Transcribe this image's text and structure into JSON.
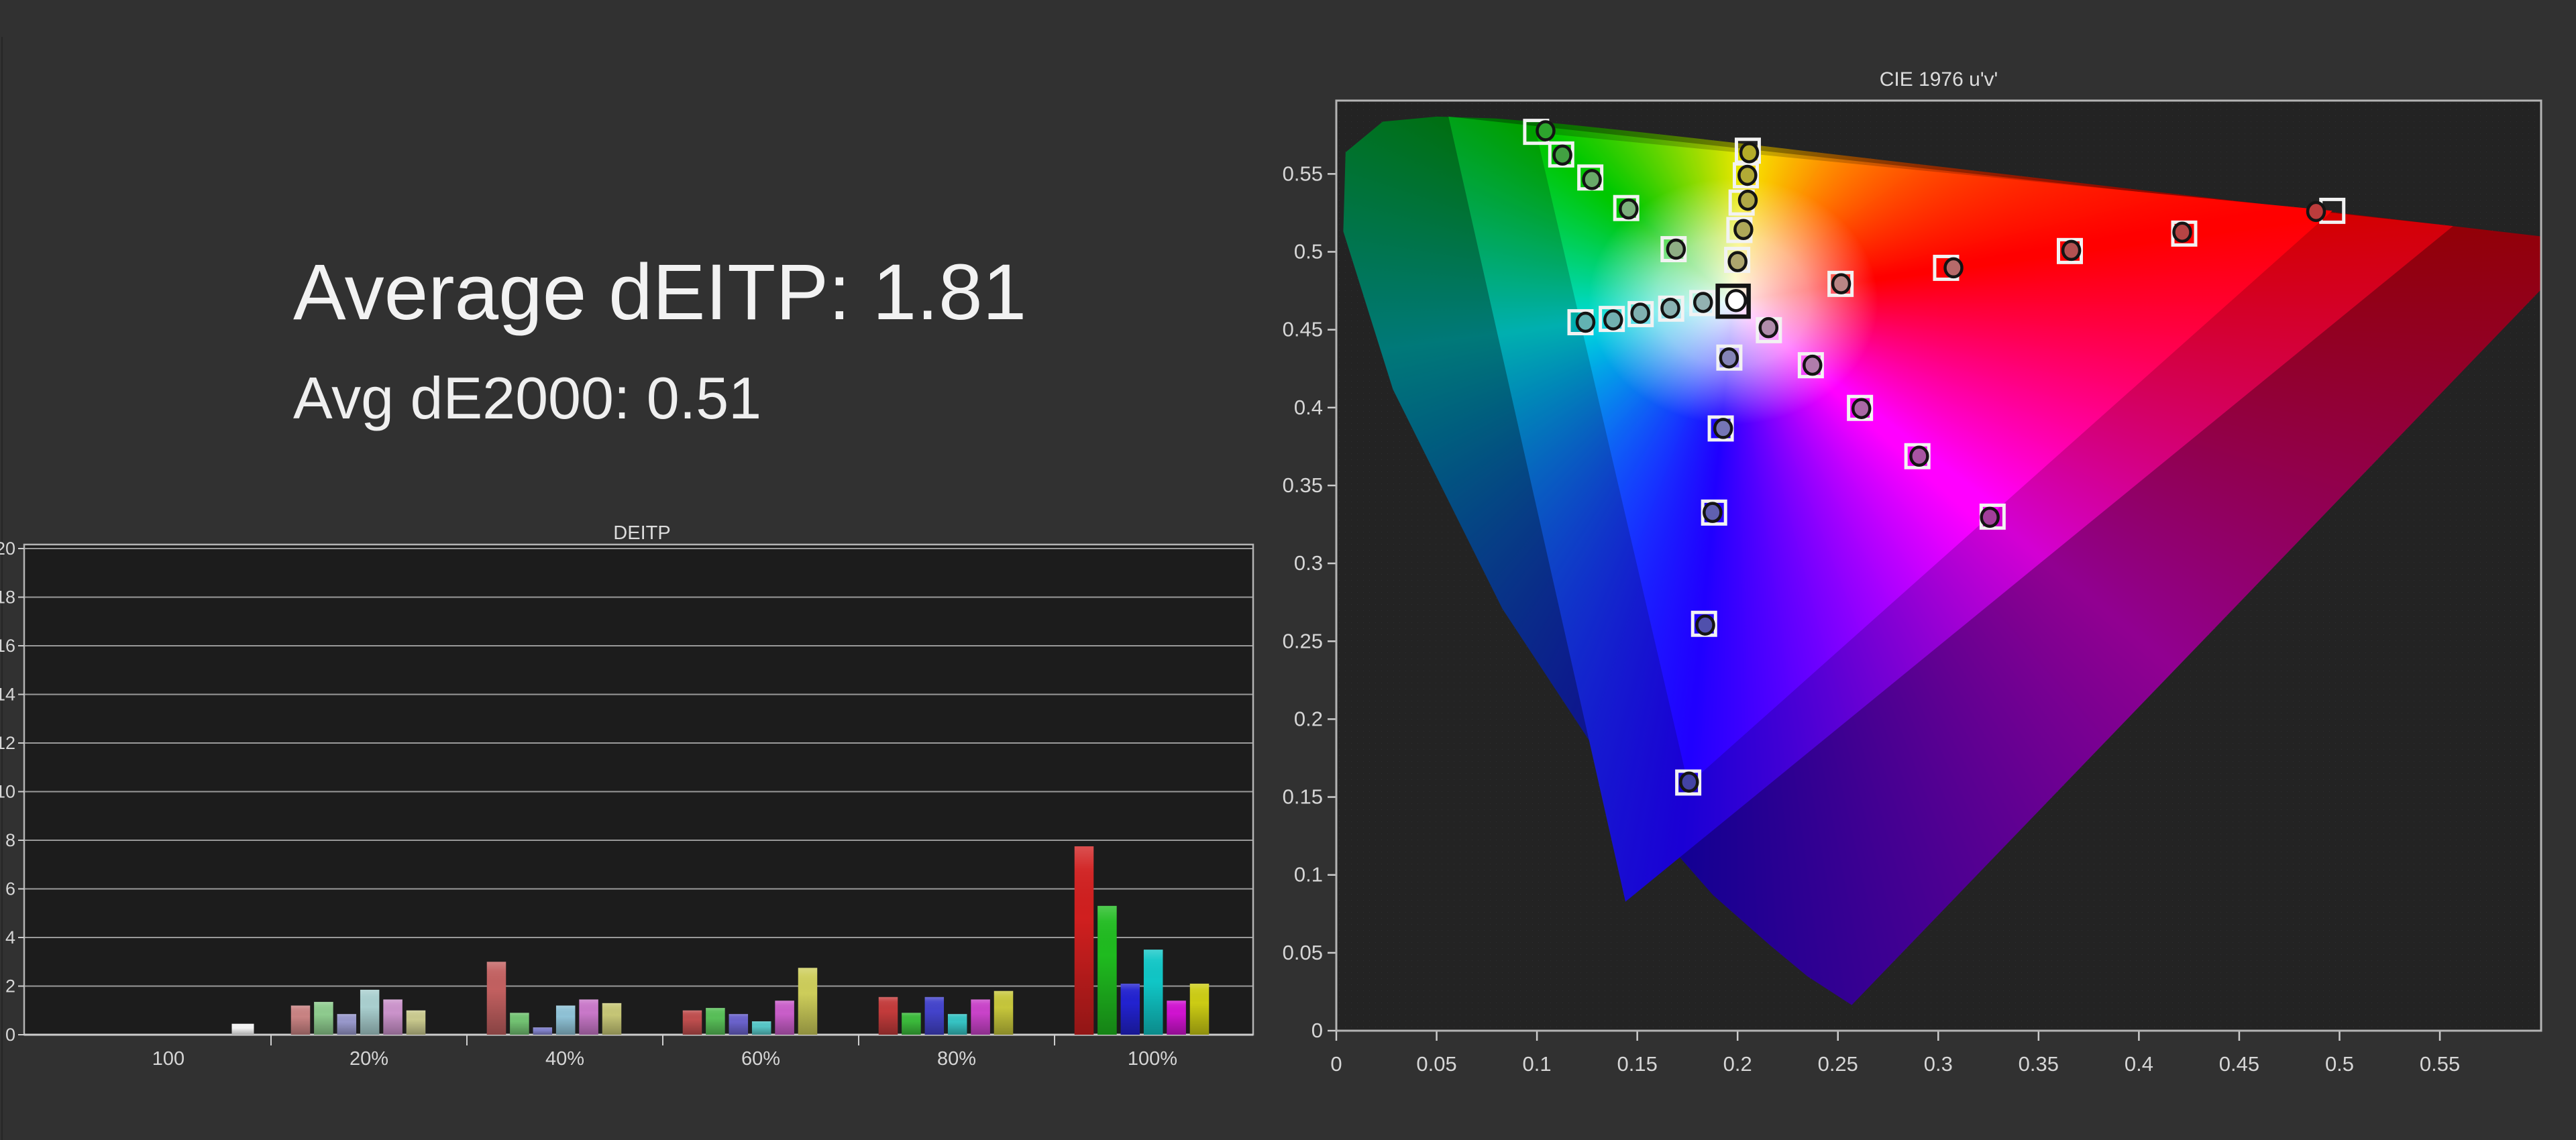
{
  "summary": {
    "average_deitp": "Average dEITP: 1.81",
    "avg_de2000": "Avg dE2000: 0.51"
  },
  "colors": {
    "page_background": "#313131",
    "plot_background_bars": "#1c1c1c",
    "plot_background_cie": "#232323",
    "gridline": "#9a9a9a",
    "frame": "#b4b4b4",
    "axis_line": "#cdcdcd",
    "tick_label": "#d6d6d6",
    "title_text": "#dcdcdc",
    "big_text": "#f2f2f2",
    "target_square_stroke": "#f2f2f2",
    "white_target_square_stroke": "#141414",
    "marker_outline": "#141414"
  },
  "chart_data": [
    {
      "type": "bar",
      "title": "DEITP",
      "ylabel": "",
      "xlabel": "",
      "ylim": [
        0,
        20
      ],
      "ytick_step": 2,
      "ytick_labels": [
        "0",
        "2",
        "4",
        "6",
        "8",
        "10",
        "12",
        "14",
        "16",
        "18",
        "20"
      ],
      "categories": [
        "100",
        "20%",
        "40%",
        "60%",
        "80%",
        "100%"
      ],
      "white_bar": {
        "category": "100",
        "value": 0.45,
        "color": "#f5f5f5"
      },
      "series": [
        {
          "name": "red",
          "values": [
            null,
            1.2,
            3.0,
            1.0,
            1.55,
            7.75
          ],
          "colors": [
            null,
            "#c98383",
            "#c26060",
            "#bf4e4e",
            "#c33b3b",
            "#d01f1f"
          ]
        },
        {
          "name": "green",
          "values": [
            null,
            1.35,
            0.9,
            1.1,
            0.9,
            5.3
          ],
          "colors": [
            null,
            "#8ecb8e",
            "#72c272",
            "#58bf58",
            "#3bb93b",
            "#1fbb1f"
          ]
        },
        {
          "name": "blue",
          "values": [
            null,
            0.85,
            0.3,
            0.85,
            1.55,
            2.1
          ],
          "colors": [
            null,
            "#9898cb",
            "#8282cb",
            "#6a62cb",
            "#4343cb",
            "#2222d0"
          ]
        },
        {
          "name": "cyan",
          "values": [
            null,
            1.85,
            1.2,
            0.55,
            0.85,
            3.5
          ],
          "colors": [
            null,
            "#a9cfcf",
            "#8fc2d6",
            "#56c6c6",
            "#36c3c3",
            "#10c6c6"
          ]
        },
        {
          "name": "magenta",
          "values": [
            null,
            1.45,
            1.45,
            1.4,
            1.45,
            1.4
          ],
          "colors": [
            null,
            "#cb93cb",
            "#c978c9",
            "#c95ec9",
            "#c943c9",
            "#d013d0"
          ]
        },
        {
          "name": "yellow",
          "values": [
            null,
            1.0,
            1.3,
            2.75,
            1.8,
            2.1
          ],
          "colors": [
            null,
            "#c9c98e",
            "#c6c676",
            "#cdcd5a",
            "#c6c63b",
            "#cccc14"
          ]
        }
      ]
    },
    {
      "type": "scatter",
      "title": "CIE 1976 u'v'",
      "xlim": [
        0,
        0.6005
      ],
      "ylim": [
        0,
        0.597
      ],
      "xticks": [
        0,
        0.05,
        0.1,
        0.15,
        0.2,
        0.25,
        0.3,
        0.35,
        0.4,
        0.45,
        0.5,
        0.55
      ],
      "xtick_labels": [
        "0",
        "0.05",
        "0.1",
        "0.15",
        "0.2",
        "0.25",
        "0.3",
        "0.35",
        "0.4",
        "0.45",
        "0.5",
        "0.55"
      ],
      "yticks": [
        0,
        0.05,
        0.1,
        0.15,
        0.2,
        0.25,
        0.3,
        0.35,
        0.4,
        0.45,
        0.5,
        0.55
      ],
      "ytick_labels": [
        "0",
        "0.05",
        "0.1",
        "0.15",
        "0.2",
        "0.25",
        "0.3",
        "0.35",
        "0.4",
        "0.45",
        "0.5",
        "0.55"
      ],
      "white_point": {
        "target": [
          0.1978,
          0.4683
        ],
        "measured": [
          0.1992,
          0.4687
        ],
        "dot_color": "#ffffff"
      },
      "sweeps": [
        {
          "name": "red",
          "targets": [
            [
              0.2513,
              0.4794
            ],
            [
              0.3039,
              0.4897
            ],
            [
              0.3656,
              0.5005
            ],
            [
              0.4226,
              0.5117
            ],
            [
              0.4964,
              0.5263
            ]
          ],
          "measured": [
            [
              0.2516,
              0.4795
            ],
            [
              0.3076,
              0.4897
            ],
            [
              0.3663,
              0.5009
            ],
            [
              0.4216,
              0.5126
            ],
            [
              0.4883,
              0.5259
            ]
          ],
          "dot_colors": [
            "#b98585",
            "#b56a6a",
            "#b35252",
            "#b54444",
            "#bc3c3c"
          ]
        },
        {
          "name": "green",
          "targets": [
            [
              0.1681,
              0.5017
            ],
            [
              0.1445,
              0.5281
            ],
            [
              0.1266,
              0.5477
            ],
            [
              0.1121,
              0.5625
            ],
            [
              0.0996,
              0.577
            ]
          ],
          "measured": [
            [
              0.1693,
              0.5017
            ],
            [
              0.1457,
              0.5275
            ],
            [
              0.1274,
              0.5464
            ],
            [
              0.1127,
              0.5621
            ],
            [
              0.1043,
              0.5777
            ]
          ],
          "dot_colors": [
            "#8fae85",
            "#7cb07c",
            "#68aa68",
            "#42a042",
            "#2da42d"
          ]
        },
        {
          "name": "blue",
          "targets": [
            [
              0.1959,
              0.4321
            ],
            [
              0.1916,
              0.3866
            ],
            [
              0.1883,
              0.3326
            ],
            [
              0.1833,
              0.2612
            ],
            [
              0.1754,
              0.1593
            ]
          ],
          "measured": [
            [
              0.1957,
              0.4319
            ],
            [
              0.1928,
              0.3866
            ],
            [
              0.1875,
              0.3327
            ],
            [
              0.1839,
              0.2604
            ],
            [
              0.1758,
              0.1596
            ]
          ],
          "dot_colors": [
            "#8484b8",
            "#7575b5",
            "#6060b0",
            "#5050ac",
            "#4343a4"
          ]
        },
        {
          "name": "cyan",
          "targets": [
            [
              0.1824,
              0.4671
            ],
            [
              0.1669,
              0.4635
            ],
            [
              0.1517,
              0.46
            ],
            [
              0.1373,
              0.4569
            ],
            [
              0.1217,
              0.4548
            ]
          ],
          "measured": [
            [
              0.1828,
              0.4675
            ],
            [
              0.1665,
              0.4638
            ],
            [
              0.1515,
              0.4606
            ],
            [
              0.138,
              0.4563
            ],
            [
              0.1242,
              0.4548
            ]
          ],
          "dot_colors": [
            "#92b2b2",
            "#8ab2b2",
            "#7fb0b0",
            "#72b0b0",
            "#62b2b2"
          ]
        },
        {
          "name": "magenta",
          "targets": [
            [
              0.2156,
              0.4497
            ],
            [
              0.2365,
              0.4272
            ],
            [
              0.261,
              0.3998
            ],
            [
              0.2896,
              0.3688
            ],
            [
              0.3271,
              0.33
            ]
          ],
          "measured": [
            [
              0.2154,
              0.4513
            ],
            [
              0.2373,
              0.4272
            ],
            [
              0.2617,
              0.3994
            ],
            [
              0.2905,
              0.3688
            ],
            [
              0.3257,
              0.3296
            ]
          ],
          "dot_colors": [
            "#b08cab",
            "#b07cab",
            "#aa68a5",
            "#a854a2",
            "#a23e9b"
          ]
        },
        {
          "name": "yellow",
          "targets": [
            [
              0.1998,
              0.4948
            ],
            [
              0.2009,
              0.514
            ],
            [
              0.202,
              0.5316
            ],
            [
              0.2041,
              0.5491
            ],
            [
              0.2051,
              0.5649
            ]
          ],
          "measured": [
            [
              0.2,
              0.4937
            ],
            [
              0.2029,
              0.5143
            ],
            [
              0.2051,
              0.5331
            ],
            [
              0.2049,
              0.5491
            ],
            [
              0.2058,
              0.5636
            ]
          ],
          "dot_colors": [
            "#aea66e",
            "#aea858",
            "#b0a846",
            "#b2aa35",
            "#b4ac28"
          ]
        }
      ],
      "gamut_p3": [
        [
          0.4964,
          0.5263
        ],
        [
          0.0996,
          0.5765
        ],
        [
          0.1754,
          0.1579
        ]
      ],
      "gamut_rec2020": [
        [
          0.5566,
          0.5165
        ],
        [
          0.0559,
          0.5868
        ],
        [
          0.1441,
          0.0828
        ]
      ],
      "spectral_locus": [
        [
          0.2569,
          0.0165
        ],
        [
          0.2347,
          0.035
        ],
        [
          0.2161,
          0.0549
        ],
        [
          0.1877,
          0.0871
        ],
        [
          0.1441,
          0.151
        ],
        [
          0.0828,
          0.2708
        ],
        [
          0.0282,
          0.4117
        ],
        [
          0.0035,
          0.5131
        ],
        [
          0.0046,
          0.5639
        ],
        [
          0.0231,
          0.5836
        ],
        [
          0.0501,
          0.5868
        ],
        [
          0.0792,
          0.5856
        ],
        [
          0.1127,
          0.5821
        ],
        [
          0.1531,
          0.5766
        ],
        [
          0.2026,
          0.5694
        ],
        [
          0.2623,
          0.5604
        ],
        [
          0.3315,
          0.5501
        ],
        [
          0.4035,
          0.5393
        ],
        [
          0.4692,
          0.5296
        ],
        [
          0.5203,
          0.5219
        ],
        [
          0.5565,
          0.5165
        ],
        [
          0.6005,
          0.5099
        ],
        [
          0.6234,
          0.5065
        ]
      ],
      "hue_stops": [
        {
          "name": "yellow",
          "u": 0.2051,
          "v": 0.5649,
          "color": "#f5e800"
        },
        {
          "name": "red",
          "u": 0.4964,
          "v": 0.5263,
          "color": "#ff0000"
        },
        {
          "name": "magenta",
          "u": 0.3271,
          "v": 0.33,
          "color": "#ff00ff"
        },
        {
          "name": "blue",
          "u": 0.1754,
          "v": 0.1579,
          "color": "#2000ff"
        },
        {
          "name": "cyan",
          "u": 0.1217,
          "v": 0.4548,
          "color": "#00d9d9"
        },
        {
          "name": "green",
          "u": 0.0996,
          "v": 0.5765,
          "color": "#00c400"
        }
      ]
    }
  ]
}
